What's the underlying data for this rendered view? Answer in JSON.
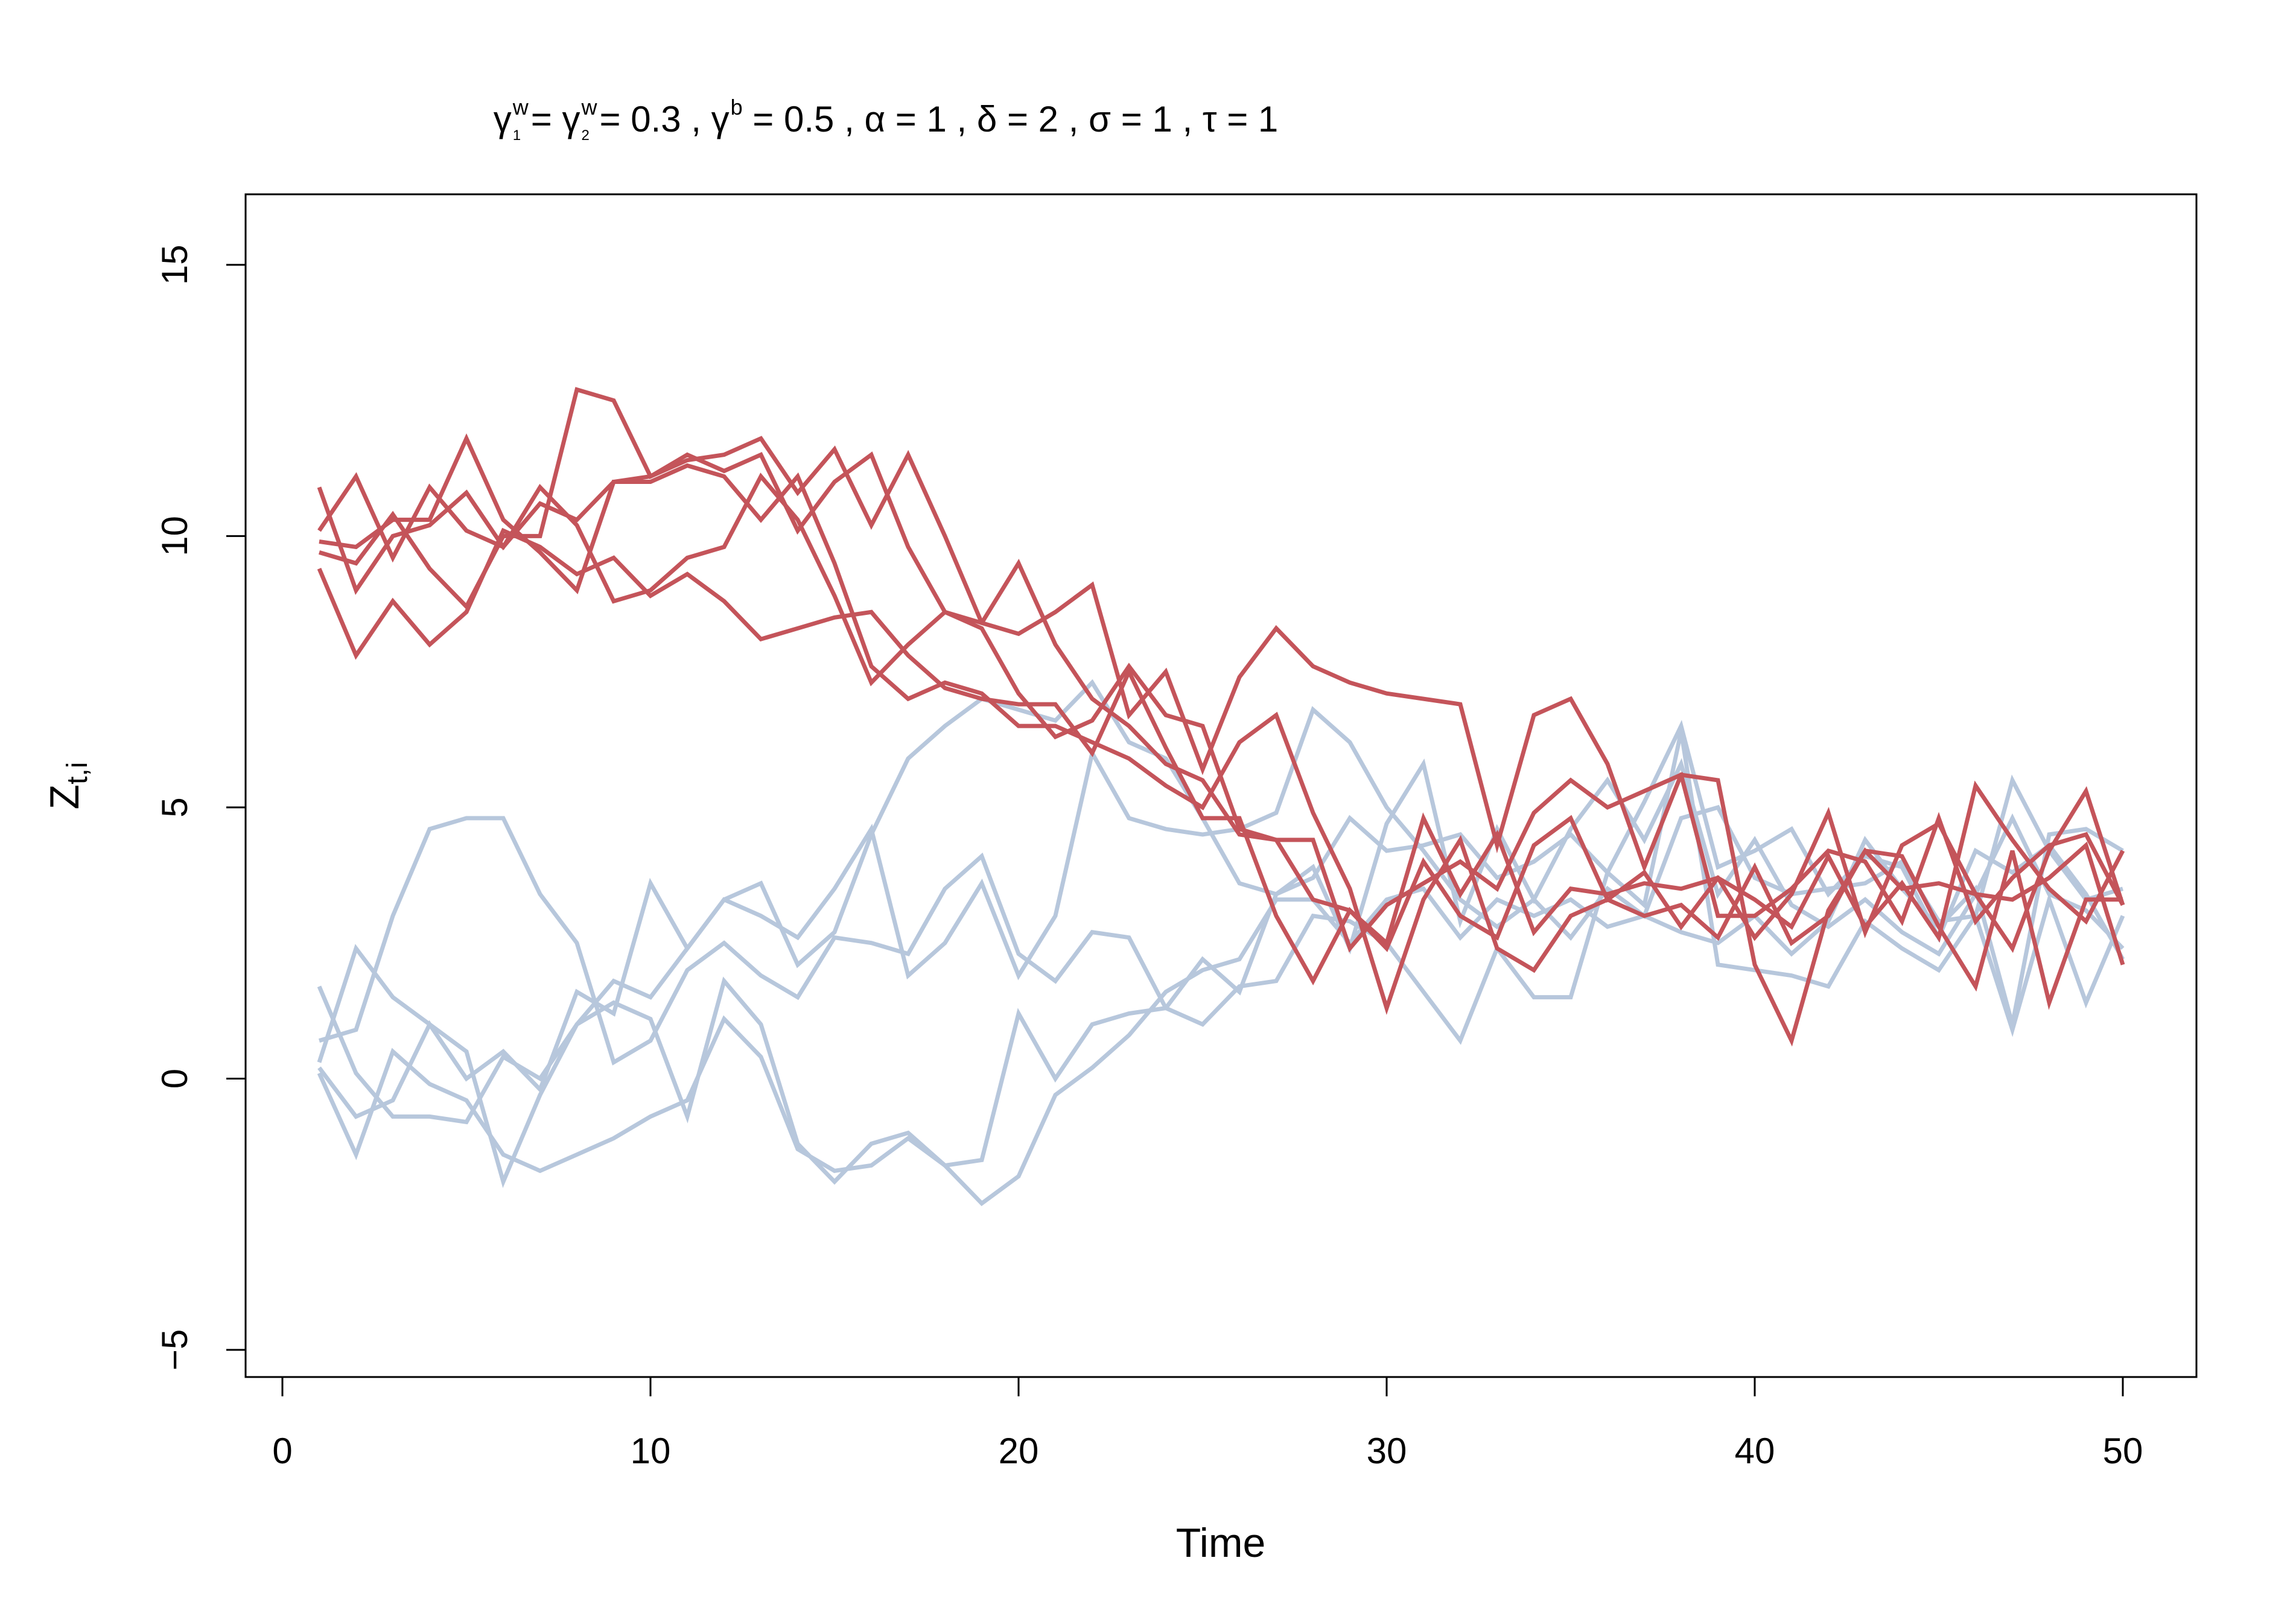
{
  "chart_data": {
    "type": "line",
    "title": {
      "gamma": "γ",
      "w": "w",
      "one": "1",
      "two": "2",
      "b": "b",
      "eq1": " = ",
      "eq2": " = 0.3 , ",
      "eq3": " = 0.5 , α = 1 , δ = 2 , σ = 1 , τ = 1"
    },
    "xlabel": "Time",
    "ylabel": {
      "base": "Z",
      "sub": "t,i"
    },
    "xlim": [
      -1,
      52
    ],
    "ylim": [
      -5.5,
      16.3
    ],
    "xticks": [
      0,
      10,
      20,
      30,
      40,
      50
    ],
    "yticks": [
      -5,
      0,
      5,
      10,
      15
    ],
    "grid": false,
    "legend": "none",
    "colors": {
      "red_group": "#c4545a",
      "blue_group": "#b7c7dc"
    },
    "x": [
      1,
      2,
      3,
      4,
      5,
      6,
      7,
      8,
      9,
      10,
      11,
      12,
      13,
      14,
      15,
      16,
      17,
      18,
      19,
      20,
      21,
      22,
      23,
      24,
      25,
      26,
      27,
      28,
      29,
      30,
      31,
      32,
      33,
      34,
      35,
      36,
      37,
      38,
      39,
      40,
      41,
      42,
      43,
      44,
      45,
      46,
      47,
      48,
      49,
      50
    ],
    "series": [
      {
        "group": "blue",
        "values": [
          0.3,
          2.4,
          1.5,
          1.0,
          0.5,
          -1.9,
          -0.3,
          1.0,
          1.4,
          1.1,
          -0.7,
          1.8,
          1.0,
          -1.2,
          -1.9,
          -1.2,
          -1.0,
          -1.6,
          -1.5,
          1.2,
          0.0,
          1.0,
          1.2,
          1.3,
          2.2,
          1.6,
          3.4,
          3.9,
          2.4,
          4.7,
          5.8,
          2.9,
          4.6,
          3.3,
          4.6,
          5.5,
          4.4,
          5.8,
          3.4,
          4.4,
          3.2,
          2.8,
          3.3,
          2.7,
          2.3,
          3.4,
          4.8,
          3.4,
          3.1,
          2.4
        ]
      },
      {
        "group": "blue",
        "values": [
          0.7,
          0.9,
          3.0,
          4.6,
          4.8,
          4.8,
          3.4,
          2.5,
          0.3,
          0.7,
          2.0,
          2.5,
          1.9,
          1.5,
          2.6,
          2.5,
          2.3,
          3.5,
          4.1,
          2.3,
          1.8,
          2.7,
          2.6,
          1.3,
          1.0,
          1.7,
          1.8,
          3.0,
          2.9,
          2.5,
          1.6,
          0.7,
          2.4,
          1.5,
          1.5,
          3.8,
          3.2,
          6.4,
          2.1,
          2.0,
          1.9,
          1.7,
          2.9,
          2.4,
          2.0,
          3.0,
          0.9,
          3.3,
          1.4,
          3.0
        ]
      },
      {
        "group": "blue",
        "values": [
          1.7,
          0.1,
          -0.7,
          -0.7,
          -0.8,
          0.4,
          0.0,
          1.0,
          1.8,
          1.5,
          2.4,
          3.3,
          3.0,
          2.6,
          3.5,
          4.6,
          1.9,
          2.5,
          3.6,
          1.9,
          3.0,
          6.0,
          4.8,
          4.6,
          4.5,
          4.6,
          4.9,
          6.8,
          6.2,
          5.0,
          4.2,
          3.3,
          2.8,
          3.3,
          2.6,
          3.5,
          3.0,
          4.8,
          5.0,
          3.7,
          3.4,
          3.5,
          3.6,
          4.0,
          2.9,
          3.0,
          5.5,
          4.2,
          3.3,
          3.5
        ]
      },
      {
        "group": "blue",
        "values": [
          0.1,
          -1.4,
          0.5,
          -0.1,
          -0.4,
          -1.4,
          -1.7,
          -1.4,
          -1.1,
          -0.7,
          -0.4,
          1.1,
          0.4,
          -1.3,
          -1.7,
          -1.6,
          -1.1,
          -1.6,
          -2.3,
          -1.8,
          -0.3,
          0.2,
          0.8,
          1.6,
          2.0,
          2.2,
          3.3,
          3.3,
          2.5,
          3.3,
          3.5,
          2.6,
          3.3,
          3.0,
          3.3,
          2.8,
          3.0,
          2.7,
          2.5,
          3.0,
          2.3,
          2.9,
          4.4,
          3.5,
          2.8,
          3.5,
          1.0,
          4.5,
          4.6,
          4.2
        ]
      },
      {
        "group": "blue",
        "values": [
          0.2,
          -0.7,
          -0.4,
          1.0,
          0.0,
          0.5,
          -0.2,
          1.6,
          1.2,
          3.6,
          2.4,
          3.3,
          3.6,
          2.1,
          2.7,
          4.5,
          5.9,
          6.5,
          7.0,
          6.8,
          6.6,
          7.3,
          6.2,
          5.9,
          4.8,
          3.6,
          3.4,
          3.7,
          4.8,
          4.2,
          4.3,
          4.5,
          3.7,
          4.0,
          4.5,
          3.8,
          5.1,
          6.5,
          3.9,
          4.2,
          4.6,
          3.4,
          4.1,
          3.9,
          2.6,
          4.2,
          3.8,
          4.3,
          3.4,
          2.2
        ]
      },
      {
        "group": "red",
        "values": [
          10.9,
          9.0,
          10.0,
          10.2,
          10.8,
          9.8,
          10.6,
          10.3,
          11.0,
          11.1,
          11.5,
          11.2,
          11.5,
          10.1,
          11.0,
          11.5,
          9.8,
          8.6,
          8.3,
          7.1,
          6.3,
          6.6,
          7.6,
          6.7,
          6.5,
          4.6,
          4.4,
          3.3,
          3.1,
          2.5,
          4.8,
          3.4,
          4.5,
          2.7,
          3.5,
          3.4,
          3.6,
          3.5,
          3.7,
          2.6,
          3.4,
          4.9,
          2.7,
          4.3,
          4.7,
          3.4,
          2.4,
          4.2,
          5.3,
          3.2
        ]
      },
      {
        "group": "red",
        "values": [
          10.1,
          11.1,
          9.6,
          10.9,
          10.1,
          9.8,
          10.9,
          10.2,
          8.8,
          9.0,
          9.6,
          9.8,
          11.1,
          10.3,
          8.9,
          7.3,
          8.0,
          8.6,
          8.4,
          9.5,
          8.0,
          7.0,
          6.5,
          5.8,
          5.5,
          4.5,
          4.4,
          4.4,
          2.4,
          3.2,
          3.6,
          4.0,
          3.5,
          4.9,
          5.5,
          5.0,
          5.3,
          5.6,
          3.0,
          3.0,
          3.5,
          4.2,
          4.0,
          2.9,
          4.8,
          2.9,
          3.7,
          4.3,
          4.5,
          3.2
        ]
      },
      {
        "group": "red",
        "values": [
          9.4,
          7.8,
          8.8,
          8.0,
          8.6,
          10.1,
          9.8,
          9.3,
          9.6,
          8.9,
          9.3,
          8.8,
          8.1,
          8.3,
          8.5,
          8.6,
          7.8,
          7.2,
          7.0,
          6.9,
          6.9,
          6.0,
          7.5,
          6.1,
          4.8,
          4.8,
          3.0,
          1.8,
          3.1,
          2.4,
          4.0,
          3.0,
          2.6,
          4.3,
          4.8,
          3.3,
          3.8,
          2.8,
          3.7,
          3.3,
          2.8,
          4.1,
          2.8,
          3.6,
          2.6,
          5.4,
          4.4,
          3.5,
          2.9,
          4.2
        ]
      },
      {
        "group": "red",
        "values": [
          9.9,
          9.8,
          10.3,
          10.3,
          11.8,
          10.3,
          9.7,
          9.0,
          11.0,
          11.0,
          11.3,
          11.1,
          10.3,
          11.1,
          9.5,
          7.6,
          7.0,
          7.3,
          7.1,
          6.5,
          6.5,
          6.2,
          5.9,
          5.4,
          5.0,
          6.2,
          6.7,
          4.9,
          3.5,
          1.3,
          3.3,
          4.4,
          2.4,
          2.0,
          3.0,
          3.3,
          3.0,
          3.2,
          2.6,
          3.9,
          2.5,
          3.0,
          4.2,
          3.5,
          3.6,
          3.4,
          3.3,
          3.7,
          4.3,
          2.1
        ]
      },
      {
        "group": "red",
        "values": [
          9.7,
          9.5,
          10.4,
          9.4,
          8.7,
          10.0,
          10.0,
          12.7,
          12.5,
          11.1,
          11.4,
          11.5,
          11.8,
          10.8,
          11.6,
          10.2,
          11.5,
          10.0,
          8.4,
          8.2,
          8.6,
          9.1,
          6.7,
          7.5,
          5.7,
          7.4,
          8.3,
          7.6,
          7.3,
          7.1,
          7.0,
          6.9,
          4.3,
          6.7,
          7.0,
          5.8,
          3.9,
          5.6,
          5.5,
          2.1,
          0.7,
          3.1,
          4.2,
          4.1,
          2.8,
          1.7,
          4.2,
          1.4,
          3.3,
          3.3
        ]
      }
    ]
  }
}
